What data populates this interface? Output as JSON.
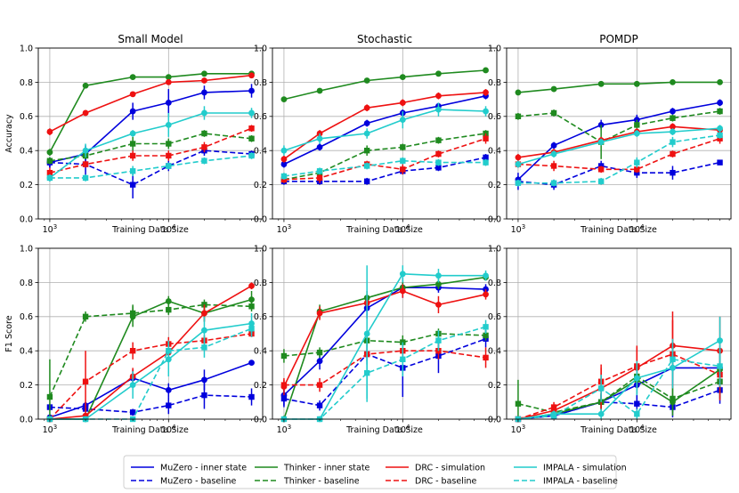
{
  "chart_data": {
    "type": "line",
    "x_scale": "log",
    "x": [
      1000,
      2000,
      5000,
      10000,
      20000,
      50000
    ],
    "xlim": [
      800,
      62000
    ],
    "x_ticks": [
      {
        "value": 1000,
        "base": "10",
        "exp": "3"
      },
      {
        "value": 10000,
        "base": "10",
        "exp": "4"
      }
    ],
    "xlabel": "Training Data Size",
    "y_ticks": [
      0.0,
      0.2,
      0.4,
      0.6,
      0.8,
      1.0
    ],
    "y_tick_labels": [
      "0.0",
      "0.2",
      "0.4",
      "0.6",
      "0.8",
      "1.0"
    ],
    "series_styles": [
      {
        "key": "muzero_inner",
        "color": "#0000dd",
        "dash": false,
        "marker": "circle"
      },
      {
        "key": "muzero_base",
        "color": "#0000dd",
        "dash": true,
        "marker": "square"
      },
      {
        "key": "thinker_inner",
        "color": "#1f8a1f",
        "dash": false,
        "marker": "circle"
      },
      {
        "key": "thinker_base",
        "color": "#1f8a1f",
        "dash": true,
        "marker": "square"
      },
      {
        "key": "drc_sim",
        "color": "#ee1111",
        "dash": false,
        "marker": "circle"
      },
      {
        "key": "drc_base",
        "color": "#ee1111",
        "dash": true,
        "marker": "square"
      },
      {
        "key": "impala_sim",
        "color": "#22cccc",
        "dash": false,
        "marker": "circle"
      },
      {
        "key": "impala_base",
        "color": "#22cccc",
        "dash": true,
        "marker": "square"
      }
    ],
    "legend": [
      {
        "key": "muzero_inner",
        "label": "MuZero - inner state"
      },
      {
        "key": "muzero_base",
        "label": "MuZero - baseline"
      },
      {
        "key": "thinker_inner",
        "label": "Thinker - inner state"
      },
      {
        "key": "thinker_base",
        "label": "Thinker - baseline"
      },
      {
        "key": "drc_sim",
        "label": "DRC - simulation"
      },
      {
        "key": "drc_base",
        "label": "DRC - baseline"
      },
      {
        "key": "impala_sim",
        "label": "IMPALA - simulation"
      },
      {
        "key": "impala_base",
        "label": "IMPALA - baseline"
      }
    ],
    "panels": [
      {
        "title": "Small Model",
        "ylabel": "Accuracy",
        "series": {
          "muzero_inner": {
            "values": [
              0.33,
              0.38,
              0.63,
              0.68,
              0.74,
              0.75
            ],
            "err": [
              0.03,
              0.05,
              0.05,
              0.08,
              0.04,
              0.04
            ]
          },
          "muzero_base": {
            "values": [
              0.33,
              0.32,
              0.2,
              0.31,
              0.4,
              0.38
            ],
            "err": [
              0.03,
              0.08,
              0.08,
              0.03,
              0.03,
              0.02
            ]
          },
          "thinker_inner": {
            "values": [
              0.39,
              0.78,
              0.83,
              0.83,
              0.85,
              0.85
            ],
            "err": [
              0.02,
              0.01,
              0.01,
              0.01,
              0.01,
              0.01
            ]
          },
          "thinker_base": {
            "values": [
              0.34,
              0.37,
              0.44,
              0.44,
              0.5,
              0.47
            ],
            "err": [
              0.02,
              0.02,
              0.04,
              0.03,
              0.02,
              0.02
            ]
          },
          "drc_sim": {
            "values": [
              0.51,
              0.62,
              0.73,
              0.8,
              0.81,
              0.84
            ],
            "err": [
              0.02,
              0.01,
              0.01,
              0.01,
              0.01,
              0.01
            ]
          },
          "drc_base": {
            "values": [
              0.27,
              0.32,
              0.37,
              0.37,
              0.42,
              0.53
            ],
            "err": [
              0.03,
              0.02,
              0.03,
              0.03,
              0.03,
              0.02
            ]
          },
          "impala_sim": {
            "values": [
              0.24,
              0.4,
              0.5,
              0.55,
              0.62,
              0.62
            ],
            "err": [
              0.02,
              0.04,
              0.02,
              0.07,
              0.04,
              0.03
            ]
          },
          "impala_base": {
            "values": [
              0.24,
              0.24,
              0.28,
              0.31,
              0.34,
              0.37
            ],
            "err": [
              0.02,
              0.02,
              0.03,
              0.02,
              0.02,
              0.02
            ]
          }
        }
      },
      {
        "title": "Stochastic",
        "ylabel": "",
        "series": {
          "muzero_inner": {
            "values": [
              0.32,
              0.42,
              0.56,
              0.62,
              0.66,
              0.72
            ],
            "err": [
              0.02,
              0.02,
              0.02,
              0.02,
              0.02,
              0.02
            ]
          },
          "muzero_base": {
            "values": [
              0.22,
              0.22,
              0.22,
              0.28,
              0.3,
              0.36
            ],
            "err": [
              0.02,
              0.02,
              0.02,
              0.02,
              0.02,
              0.02
            ]
          },
          "thinker_inner": {
            "values": [
              0.7,
              0.75,
              0.81,
              0.83,
              0.85,
              0.87
            ],
            "err": [
              0.01,
              0.01,
              0.01,
              0.01,
              0.01,
              0.01
            ]
          },
          "thinker_base": {
            "values": [
              0.23,
              0.27,
              0.4,
              0.42,
              0.46,
              0.5
            ],
            "err": [
              0.02,
              0.02,
              0.03,
              0.02,
              0.02,
              0.02
            ]
          },
          "drc_sim": {
            "values": [
              0.35,
              0.5,
              0.65,
              0.68,
              0.72,
              0.74
            ],
            "err": [
              0.02,
              0.02,
              0.02,
              0.02,
              0.02,
              0.02
            ]
          },
          "drc_base": {
            "values": [
              0.23,
              0.24,
              0.32,
              0.29,
              0.38,
              0.47
            ],
            "err": [
              0.02,
              0.03,
              0.02,
              0.03,
              0.02,
              0.03
            ]
          },
          "impala_sim": {
            "values": [
              0.4,
              0.47,
              0.5,
              0.58,
              0.64,
              0.63
            ],
            "err": [
              0.03,
              0.03,
              0.03,
              0.05,
              0.04,
              0.03
            ]
          },
          "impala_base": {
            "values": [
              0.25,
              0.28,
              0.31,
              0.34,
              0.33,
              0.33
            ],
            "err": [
              0.02,
              0.02,
              0.02,
              0.02,
              0.02,
              0.02
            ]
          }
        }
      },
      {
        "title": "POMDP",
        "ylabel": "",
        "series": {
          "muzero_inner": {
            "values": [
              0.23,
              0.43,
              0.55,
              0.58,
              0.63,
              0.68
            ],
            "err": [
              0.02,
              0.02,
              0.03,
              0.03,
              0.02,
              0.02
            ]
          },
          "muzero_base": {
            "values": [
              0.22,
              0.2,
              0.31,
              0.27,
              0.27,
              0.33
            ],
            "err": [
              0.05,
              0.03,
              0.03,
              0.03,
              0.04,
              0.01
            ]
          },
          "thinker_inner": {
            "values": [
              0.74,
              0.76,
              0.79,
              0.79,
              0.8,
              0.8
            ],
            "err": [
              0.01,
              0.01,
              0.01,
              0.01,
              0.01,
              0.01
            ]
          },
          "thinker_base": {
            "values": [
              0.6,
              0.62,
              0.45,
              0.55,
              0.59,
              0.63
            ],
            "err": [
              0.02,
              0.02,
              0.1,
              0.03,
              0.02,
              0.02
            ]
          },
          "drc_sim": {
            "values": [
              0.36,
              0.39,
              0.46,
              0.51,
              0.54,
              0.52
            ],
            "err": [
              0.02,
              0.02,
              0.02,
              0.02,
              0.02,
              0.02
            ]
          },
          "drc_base": {
            "values": [
              0.32,
              0.31,
              0.29,
              0.29,
              0.38,
              0.47
            ],
            "err": [
              0.02,
              0.03,
              0.02,
              0.02,
              0.02,
              0.03
            ]
          },
          "impala_sim": {
            "values": [
              0.32,
              0.38,
              0.45,
              0.5,
              0.51,
              0.53
            ],
            "err": [
              0.02,
              0.02,
              0.02,
              0.02,
              0.02,
              0.02
            ]
          },
          "impala_base": {
            "values": [
              0.21,
              0.21,
              0.22,
              0.33,
              0.45,
              0.49
            ],
            "err": [
              0.02,
              0.02,
              0.02,
              0.03,
              0.03,
              0.02
            ]
          }
        }
      },
      {
        "title": "",
        "ylabel": "F1 Score",
        "series": {
          "muzero_inner": {
            "values": [
              0.01,
              0.08,
              0.24,
              0.17,
              0.23,
              0.33
            ],
            "err": [
              0.01,
              0.02,
              0.05,
              0.04,
              0.06,
              0.01
            ]
          },
          "muzero_base": {
            "values": [
              0.07,
              0.06,
              0.04,
              0.08,
              0.14,
              0.13
            ],
            "err": [
              0.02,
              0.02,
              0.02,
              0.05,
              0.08,
              0.05
            ]
          },
          "thinker_inner": {
            "values": [
              0.0,
              0.0,
              0.6,
              0.69,
              0.62,
              0.7
            ],
            "err": [
              0.01,
              0.01,
              0.06,
              0.03,
              0.05,
              0.05
            ]
          },
          "thinker_base": {
            "values": [
              0.13,
              0.6,
              0.62,
              0.64,
              0.67,
              0.66
            ],
            "err": [
              0.22,
              0.03,
              0.05,
              0.03,
              0.03,
              0.03
            ]
          },
          "drc_sim": {
            "values": [
              0.0,
              0.02,
              0.25,
              0.39,
              0.62,
              0.78
            ],
            "err": [
              0.01,
              0.02,
              0.05,
              0.06,
              0.05,
              0.02
            ]
          },
          "drc_base": {
            "values": [
              0.0,
              0.22,
              0.4,
              0.44,
              0.46,
              0.5
            ],
            "err": [
              0.01,
              0.18,
              0.05,
              0.04,
              0.03,
              0.02
            ]
          },
          "impala_sim": {
            "values": [
              0.0,
              0.0,
              0.2,
              0.35,
              0.52,
              0.56
            ],
            "err": [
              0.01,
              0.01,
              0.08,
              0.1,
              0.08,
              0.06
            ]
          },
          "impala_base": {
            "values": [
              0.0,
              0.0,
              0.0,
              0.4,
              0.42,
              0.53
            ],
            "err": [
              0.01,
              0.01,
              0.01,
              0.06,
              0.06,
              0.05
            ]
          }
        }
      },
      {
        "title": "",
        "ylabel": "",
        "series": {
          "muzero_inner": {
            "values": [
              0.14,
              0.34,
              0.65,
              0.77,
              0.77,
              0.76
            ],
            "err": [
              0.06,
              0.05,
              0.06,
              0.06,
              0.03,
              0.03
            ]
          },
          "muzero_base": {
            "values": [
              0.12,
              0.08,
              0.38,
              0.3,
              0.37,
              0.47
            ],
            "err": [
              0.05,
              0.03,
              0.06,
              0.17,
              0.1,
              0.05
            ]
          },
          "thinker_inner": {
            "values": [
              0.0,
              0.63,
              0.71,
              0.77,
              0.79,
              0.83
            ],
            "err": [
              0.02,
              0.04,
              0.04,
              0.04,
              0.03,
              0.02
            ]
          },
          "thinker_base": {
            "values": [
              0.37,
              0.39,
              0.46,
              0.45,
              0.5,
              0.49
            ],
            "err": [
              0.04,
              0.03,
              0.04,
              0.04,
              0.03,
              0.03
            ]
          },
          "drc_sim": {
            "values": [
              0.19,
              0.62,
              0.68,
              0.75,
              0.67,
              0.73
            ],
            "err": [
              0.05,
              0.04,
              0.04,
              0.04,
              0.05,
              0.03
            ]
          },
          "drc_base": {
            "values": [
              0.2,
              0.2,
              0.38,
              0.4,
              0.4,
              0.36
            ],
            "err": [
              0.03,
              0.04,
              0.04,
              0.04,
              0.05,
              0.06
            ]
          },
          "impala_sim": {
            "values": [
              0.0,
              0.0,
              0.5,
              0.85,
              0.84,
              0.84
            ],
            "err": [
              0.01,
              0.01,
              0.4,
              0.05,
              0.04,
              0.03
            ]
          },
          "impala_base": {
            "values": [
              0.0,
              0.0,
              0.27,
              0.35,
              0.46,
              0.54
            ],
            "err": [
              0.01,
              0.01,
              0.15,
              0.1,
              0.06,
              0.04
            ]
          }
        }
      },
      {
        "title": "",
        "ylabel": "",
        "series": {
          "muzero_inner": {
            "values": [
              0.0,
              0.02,
              0.1,
              0.2,
              0.3,
              0.3
            ],
            "err": [
              0.01,
              0.02,
              0.05,
              0.1,
              0.1,
              0.1
            ]
          },
          "muzero_base": {
            "values": [
              0.0,
              0.02,
              0.1,
              0.09,
              0.07,
              0.17
            ],
            "err": [
              0.01,
              0.02,
              0.04,
              0.05,
              0.06,
              0.08
            ]
          },
          "thinker_inner": {
            "values": [
              0.0,
              0.03,
              0.1,
              0.23,
              0.1,
              0.29
            ],
            "err": [
              0.01,
              0.02,
              0.05,
              0.08,
              0.08,
              0.08
            ]
          },
          "thinker_base": {
            "values": [
              0.09,
              0.04,
              0.1,
              0.25,
              0.12,
              0.22
            ],
            "err": [
              0.14,
              0.03,
              0.05,
              0.08,
              0.08,
              0.1
            ]
          },
          "drc_sim": {
            "values": [
              0.0,
              0.05,
              0.18,
              0.3,
              0.43,
              0.4
            ],
            "err": [
              0.01,
              0.03,
              0.12,
              0.12,
              0.2,
              0.2
            ]
          },
          "drc_base": {
            "values": [
              0.0,
              0.07,
              0.22,
              0.31,
              0.38,
              0.26
            ],
            "err": [
              0.01,
              0.03,
              0.1,
              0.12,
              0.2,
              0.15
            ]
          },
          "impala_sim": {
            "values": [
              0.0,
              0.03,
              0.03,
              0.24,
              0.3,
              0.46
            ],
            "err": [
              0.01,
              0.02,
              0.03,
              0.1,
              0.12,
              0.14
            ]
          },
          "impala_base": {
            "values": [
              0.0,
              0.02,
              0.18,
              0.03,
              0.35,
              0.31
            ],
            "err": [
              0.01,
              0.02,
              0.08,
              0.03,
              0.12,
              0.12
            ]
          }
        }
      }
    ]
  }
}
